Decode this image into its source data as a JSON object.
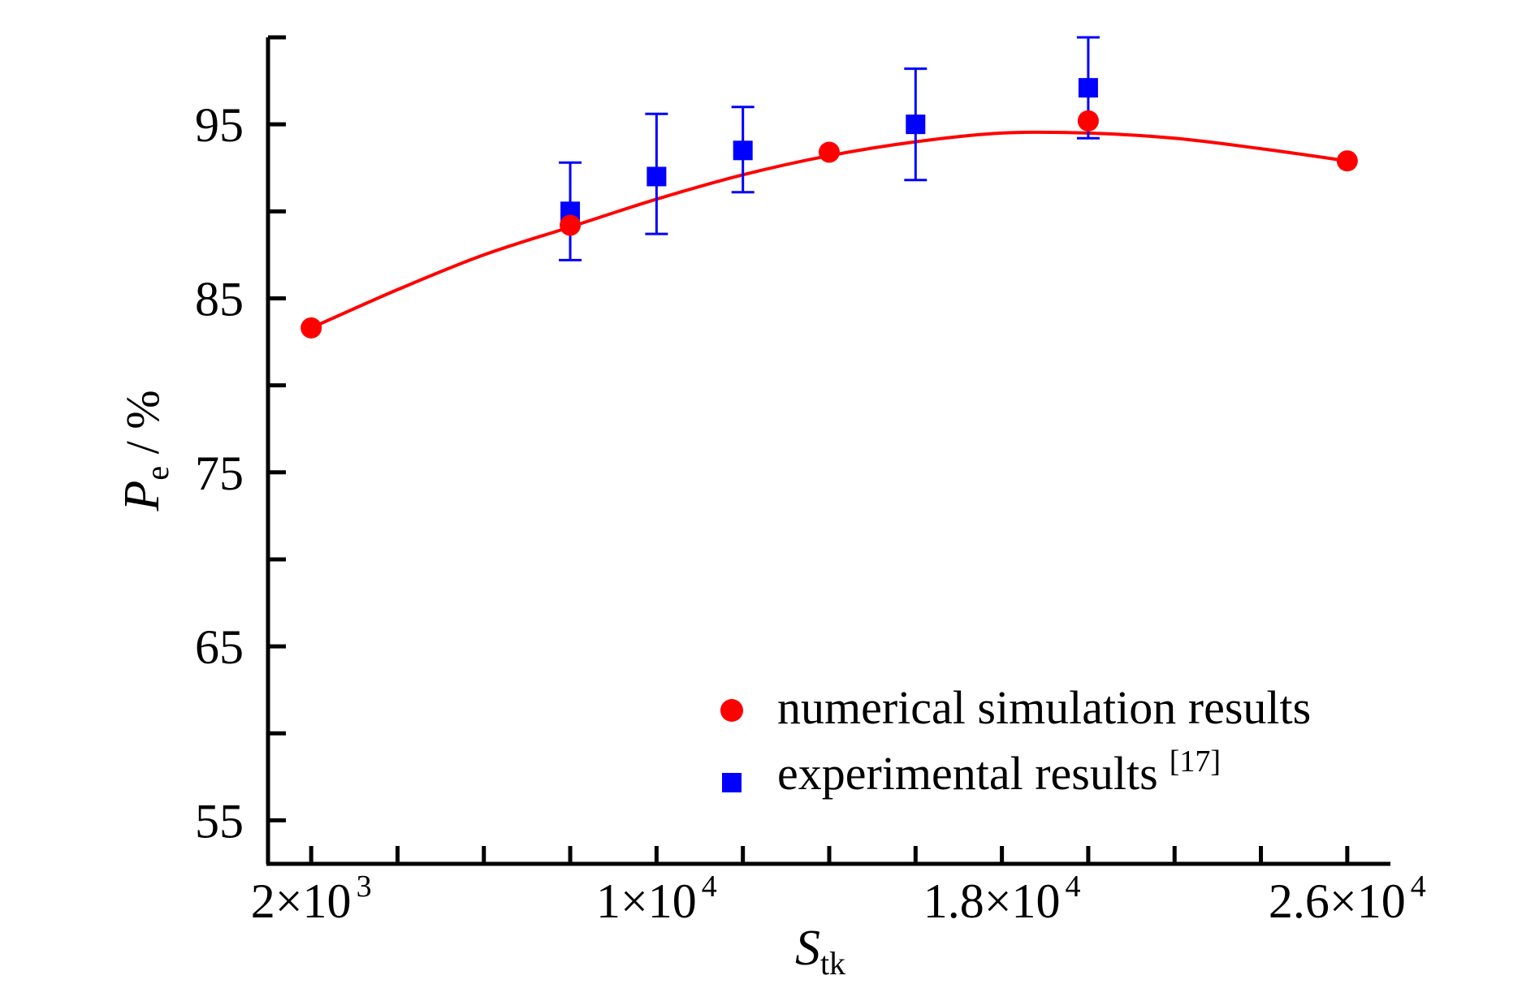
{
  "chart_data": {
    "type": "scatter",
    "xlabel": {
      "main": "S",
      "sub": "tk"
    },
    "ylabel": {
      "main": "P",
      "sub": "e",
      "unit": " / %"
    },
    "xlim": [
      1000,
      27000
    ],
    "ylim": [
      52.5,
      100
    ],
    "x_ticks": [
      {
        "value": 2000,
        "mantissa": "2×10",
        "exp": "3"
      },
      {
        "value": 10000,
        "mantissa": "1×10",
        "exp": "4"
      },
      {
        "value": 18000,
        "mantissa": "1.8×10",
        "exp": "4"
      },
      {
        "value": 26000,
        "mantissa": "2.6×10",
        "exp": "4"
      }
    ],
    "x_minor_ticks": [
      4000,
      6000,
      8000,
      12000,
      14000,
      16000,
      20000,
      22000,
      24000
    ],
    "y_ticks": [
      55,
      65,
      75,
      85,
      95
    ],
    "y_minor_ticks": [
      60,
      70,
      80,
      90,
      100
    ],
    "series": [
      {
        "name": "numerical simulation results",
        "marker": "circle",
        "color": "#ff0000",
        "x": [
          2000,
          8000,
          14000,
          20000,
          26000
        ],
        "y": [
          83.3,
          89.2,
          93.4,
          95.2,
          92.9
        ]
      },
      {
        "name": "experimental results",
        "name_ref": "[17]",
        "marker": "square",
        "color": "#0000ff",
        "x": [
          8000,
          10000,
          12000,
          16000,
          20000
        ],
        "y": [
          90.0,
          92.0,
          93.5,
          95.0,
          97.1
        ],
        "err_low": [
          2.8,
          3.3,
          2.4,
          3.2,
          2.9
        ],
        "err_high": [
          2.8,
          3.6,
          2.5,
          3.2,
          2.9
        ]
      }
    ],
    "fit_line": {
      "color": "#ff0000",
      "x": [
        2000,
        4000,
        6000,
        8000,
        10000,
        12000,
        14000,
        16000,
        18000,
        20000,
        22000,
        24000,
        26000
      ],
      "y": [
        83.3,
        85.5,
        87.5,
        89.1,
        90.7,
        92.1,
        93.2,
        94.0,
        94.5,
        94.5,
        94.2,
        93.6,
        92.9
      ]
    },
    "legend_position": "bottom-right",
    "grid": false
  }
}
